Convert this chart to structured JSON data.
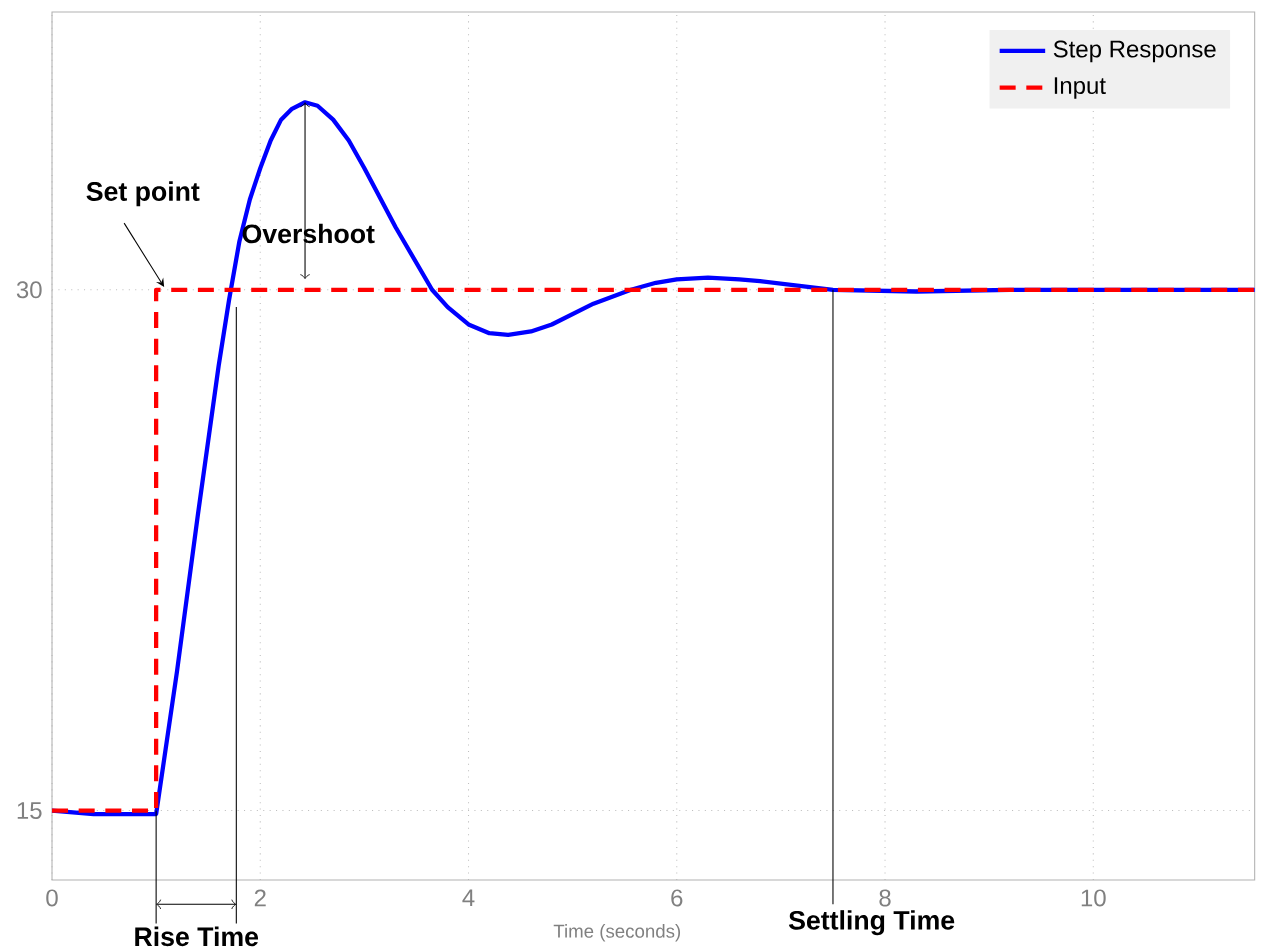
{
  "chart_data": {
    "type": "line",
    "xlabel": "Time (seconds)",
    "xlim": [
      0,
      11.55
    ],
    "ylim": [
      13,
      38
    ],
    "xticks": [
      0,
      2,
      4,
      6,
      8,
      10
    ],
    "yticks": [
      15,
      30
    ],
    "grid": true,
    "legend": "top right",
    "series": [
      {
        "name": "Step Response",
        "color": "#0000ff",
        "line_style": "solid",
        "x": [
          0,
          0.4,
          1.0,
          1.2,
          1.4,
          1.6,
          1.7,
          1.8,
          1.9,
          2.0,
          2.1,
          2.2,
          2.3,
          2.43,
          2.55,
          2.7,
          2.85,
          3.0,
          3.3,
          3.65,
          3.8,
          4.0,
          4.2,
          4.38,
          4.6,
          4.8,
          5.2,
          5.56,
          5.8,
          6.0,
          6.3,
          6.6,
          6.8,
          7.5,
          8.3,
          9.2,
          11.55
        ],
        "values": [
          15,
          14.9,
          14.9,
          19,
          23.5,
          27.8,
          29.7,
          31.4,
          32.6,
          33.5,
          34.3,
          34.9,
          35.2,
          35.4,
          35.3,
          34.9,
          34.3,
          33.5,
          31.8,
          30,
          29.5,
          29.0,
          28.75,
          28.7,
          28.8,
          29.0,
          29.6,
          30,
          30.2,
          30.3,
          30.35,
          30.3,
          30.25,
          30,
          29.95,
          30,
          30
        ]
      },
      {
        "name": "Input",
        "color": "#ff0000",
        "line_style": "dashed",
        "x": [
          0,
          1,
          1,
          11.55
        ],
        "values": [
          15,
          15,
          30,
          30
        ]
      }
    ],
    "annotations": [
      {
        "text": "Set point",
        "x": 1,
        "y": 30
      },
      {
        "text": "Overshoot",
        "x": 2.43,
        "y": 35.4
      },
      {
        "text": "Rise Time",
        "x": 1.77,
        "y": 29.5
      },
      {
        "text": "Settling Time",
        "x": 7.5,
        "y": 30
      }
    ]
  }
}
